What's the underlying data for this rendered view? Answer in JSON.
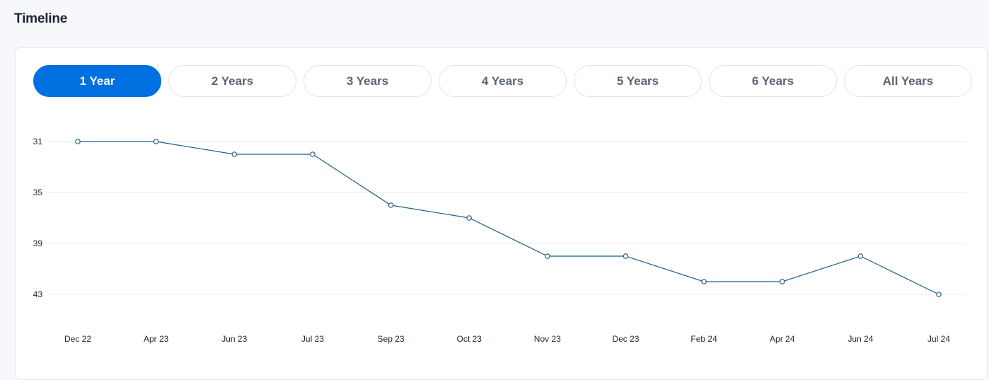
{
  "page": {
    "title": "Timeline"
  },
  "tabs": [
    "1 Year",
    "2 Years",
    "3 Years",
    "4 Years",
    "5 Years",
    "6 Years",
    "All Years"
  ],
  "active_tab": 0,
  "colors": {
    "accent": "#0070e0",
    "line": "#1f5f86",
    "grid": "#e8ebf0"
  },
  "chart_data": {
    "type": "line",
    "title": "",
    "xlabel": "",
    "ylabel": "",
    "y_inverted": true,
    "ylim": [
      31,
      43
    ],
    "yticks": [
      31,
      35,
      39,
      43
    ],
    "grid": true,
    "categories": [
      "Dec 22",
      "Apr 23",
      "Jun 23",
      "Jul 23",
      "Sep 23",
      "Oct 23",
      "Nov 23",
      "Dec 23",
      "Feb 24",
      "Apr 24",
      "Jun 24",
      "Jul 24"
    ],
    "series": [
      {
        "values": [
          31,
          31,
          32,
          32,
          36,
          37,
          40,
          40,
          42,
          42,
          40,
          43
        ]
      }
    ]
  }
}
